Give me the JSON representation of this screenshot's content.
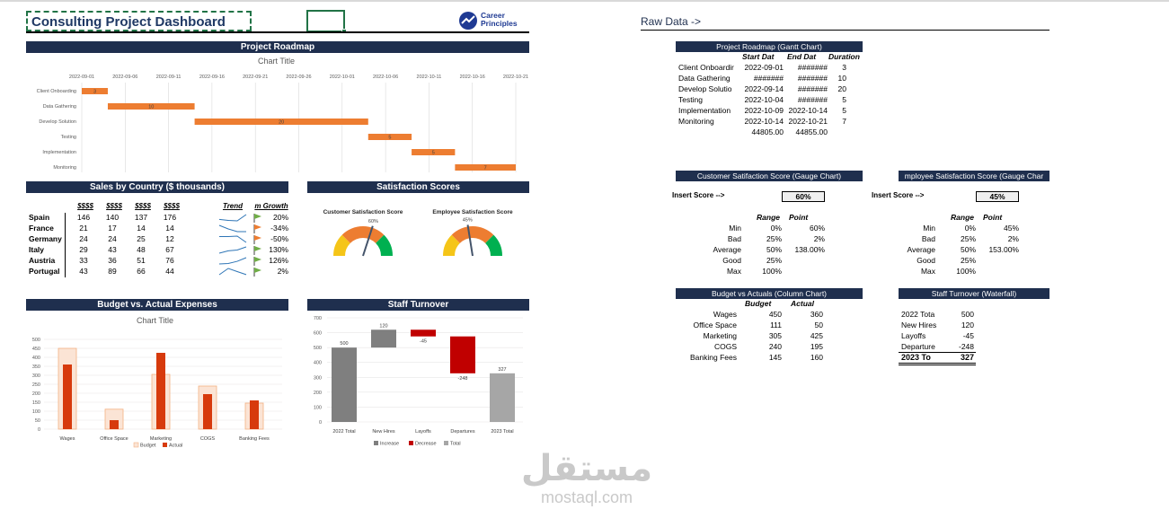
{
  "dashboard": {
    "title": "Consulting Project Dashboard",
    "logo": {
      "line1": "Career",
      "line2": "Principles"
    },
    "sections": {
      "roadmap": "Project Roadmap",
      "sales": "Sales by Country ($ thousands)",
      "satisfaction": "Satisfaction Scores",
      "budget": "Budget vs. Actual Expenses",
      "turnover": "Staff Turnover"
    }
  },
  "gantt": {
    "chart_title": "Chart Title",
    "dates": [
      "2022-09-01",
      "2022-09-06",
      "2022-09-11",
      "2022-09-16",
      "2022-09-21",
      "2022-09-26",
      "2022-10-01",
      "2022-10-06",
      "2022-10-11",
      "2022-10-16",
      "2022-10-21"
    ],
    "tasks": [
      {
        "name": "Client Onboarding",
        "label": "Client Onboarding",
        "start": 0,
        "duration": 3
      },
      {
        "name": "Data Gathering",
        "label": "Data Gathering",
        "start": 3,
        "duration": 10
      },
      {
        "name": "Develop Solution",
        "label": "Develop Solution",
        "start": 13,
        "duration": 20
      },
      {
        "name": "Testing",
        "label": "Testing",
        "start": 33,
        "duration": 5
      },
      {
        "name": "Implementation",
        "label": "Implementation",
        "start": 38,
        "duration": 5
      },
      {
        "name": "Monitoring",
        "label": "Monitoring",
        "start": 43,
        "duration": 7
      }
    ],
    "color": "#ed7d31"
  },
  "sales": {
    "headers": [
      "$$$$",
      "$$$$",
      "$$$$",
      "$$$$",
      "Trend",
      "m Growth"
    ],
    "rows": [
      {
        "country": "Spain",
        "v": [
          "146",
          "140",
          "137",
          "176"
        ],
        "growth": "20%",
        "dir": "up"
      },
      {
        "country": "France",
        "v": [
          "21",
          "17",
          "14",
          "14"
        ],
        "growth": "-34%",
        "dir": "down"
      },
      {
        "country": "Germany",
        "v": [
          "24",
          "24",
          "25",
          "12"
        ],
        "growth": "-50%",
        "dir": "down"
      },
      {
        "country": "Italy",
        "v": [
          "29",
          "43",
          "48",
          "67"
        ],
        "growth": "130%",
        "dir": "up"
      },
      {
        "country": "Austria",
        "v": [
          "33",
          "36",
          "51",
          "76"
        ],
        "growth": "126%",
        "dir": "up"
      },
      {
        "country": "Portugal",
        "v": [
          "43",
          "89",
          "66",
          "44"
        ],
        "growth": "2%",
        "dir": "up"
      }
    ]
  },
  "gauges": {
    "customer": {
      "title": "Customer Satisfaction Score",
      "value_label": "60%",
      "value": 0.6
    },
    "employee": {
      "title": "Employee Satisfaction Score",
      "value_label": "45%",
      "value": 0.45
    },
    "colors": [
      "#f5c518",
      "#ed7d31",
      "#00b050"
    ]
  },
  "budget_chart": {
    "chart_title": "Chart Title",
    "categories": [
      "Wages",
      "Office Space",
      "Marketing",
      "COGS",
      "Banking Fees"
    ],
    "budget": [
      450,
      111,
      305,
      240,
      145
    ],
    "actual": [
      360,
      50,
      425,
      195,
      160
    ],
    "yticks": [
      "0",
      "50",
      "100",
      "150",
      "200",
      "250",
      "300",
      "350",
      "400",
      "450",
      "500"
    ],
    "legend": {
      "budget": "Budget",
      "actual": "Actual"
    },
    "budget_fill": "#fbe4d5",
    "budget_stroke": "#f4b183",
    "actual_fill": "#d73a0c"
  },
  "waterfall": {
    "categories": [
      "2022 Total",
      "New Hires",
      "Layoffs",
      "Departures",
      "2023 Total"
    ],
    "values": [
      500,
      120,
      -45,
      -248,
      327
    ],
    "labels": [
      "500",
      "120",
      "-45",
      "-248",
      "327"
    ],
    "yticks": [
      "0",
      "100",
      "200",
      "300",
      "400",
      "500",
      "600",
      "700"
    ],
    "legend": {
      "increase": "Increase",
      "decrease": "Decrease",
      "total": "Total"
    },
    "colors": {
      "increase": "#7f7f7f",
      "decrease": "#c00000",
      "total": "#a6a6a6",
      "start": "#7f7f7f"
    }
  },
  "raw": {
    "title": "Raw Data ->",
    "gantt_table": {
      "header": "Project Roadmap (Gantt Chart)",
      "cols": [
        "Start Dat",
        "End Dat",
        "Duration"
      ],
      "rows": [
        [
          "Client Onboardir",
          "2022-09-01",
          "#######",
          "3"
        ],
        [
          "Data Gathering",
          "#######",
          "#######",
          "10"
        ],
        [
          "Develop Solutio",
          "2022-09-14",
          "#######",
          "20"
        ],
        [
          "Testing",
          "2022-10-04",
          "#######",
          "5"
        ],
        [
          "Implementation",
          "2022-10-09",
          "2022-10-14",
          "5"
        ],
        [
          "Monitoring",
          "2022-10-14",
          "2022-10-21",
          "7"
        ]
      ],
      "footer": [
        "44805.00",
        "44855.00"
      ]
    },
    "csat": {
      "header": "Customer Satifaction Score (Gauge Chart)",
      "insert_label": "Insert Score -->",
      "score": "60%",
      "cols": [
        "Range",
        "Point"
      ],
      "rows": [
        [
          "Min",
          "0%",
          "60%"
        ],
        [
          "Bad",
          "25%",
          "2%"
        ],
        [
          "Average",
          "50%",
          "138.00%"
        ],
        [
          "Good",
          "25%",
          ""
        ],
        [
          "Max",
          "100%",
          ""
        ]
      ]
    },
    "esat": {
      "header": "mployee Satisfaction Score (Gauge Char",
      "insert_label": "Insert Score -->",
      "score": "45%",
      "cols": [
        "Range",
        "Point"
      ],
      "rows": [
        [
          "Min",
          "0%",
          "45%"
        ],
        [
          "Bad",
          "25%",
          "2%"
        ],
        [
          "Average",
          "50%",
          "153.00%"
        ],
        [
          "Good",
          "25%",
          ""
        ],
        [
          "Max",
          "100%",
          ""
        ]
      ]
    },
    "budget_table": {
      "header": "Budget vs Actuals (Column Chart)",
      "cols": [
        "Budget",
        "Actual"
      ],
      "rows": [
        [
          "Wages",
          "450",
          "360"
        ],
        [
          "Office Space",
          "111",
          "50"
        ],
        [
          "Marketing",
          "305",
          "425"
        ],
        [
          "COGS",
          "240",
          "195"
        ],
        [
          "Banking Fees",
          "145",
          "160"
        ]
      ]
    },
    "turnover_table": {
      "header": "Staff Turnover (Waterfall)",
      "rows": [
        [
          "2022 Tota",
          "500"
        ],
        [
          "New Hires",
          "120"
        ],
        [
          "Layoffs",
          "-45"
        ],
        [
          "Departure",
          "-248"
        ]
      ],
      "total": [
        "2023 To",
        "327"
      ]
    }
  },
  "watermark": {
    "arabic": "مستقل",
    "latin": "mostaql.com"
  }
}
